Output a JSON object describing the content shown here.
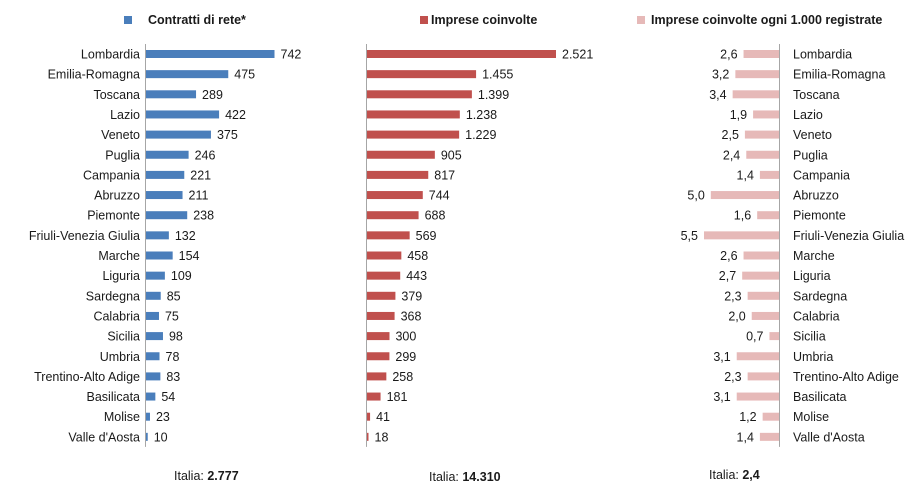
{
  "chart_data": [
    {
      "type": "bar",
      "orientation": "horizontal",
      "series_name": "Contratti di rete*",
      "color": "#4a7ebb",
      "categories": [
        "Lombardia",
        "Emilia-Romagna",
        "Toscana",
        "Lazio",
        "Veneto",
        "Puglia",
        "Campania",
        "Abruzzo",
        "Piemonte",
        "Friuli-Venezia Giulia",
        "Marche",
        "Liguria",
        "Sardegna",
        "Calabria",
        "Sicilia",
        "Umbria",
        "Trentino-Alto Adige",
        "Basilicata",
        "Molise",
        "Valle d'Aosta"
      ],
      "values": [
        742,
        475,
        289,
        422,
        375,
        246,
        221,
        211,
        238,
        132,
        154,
        109,
        85,
        75,
        98,
        78,
        83,
        54,
        23,
        10
      ],
      "value_labels": [
        "742",
        "475",
        "289",
        "422",
        "375",
        "246",
        "221",
        "211",
        "238",
        "132",
        "154",
        "109",
        "85",
        "75",
        "98",
        "78",
        "83",
        "54",
        "23",
        "10"
      ],
      "total_label": "Italia: ",
      "total_value": "2.777"
    },
    {
      "type": "bar",
      "orientation": "horizontal",
      "series_name": "Imprese coinvolte",
      "color": "#c0504d",
      "categories": [
        "Lombardia",
        "Emilia-Romagna",
        "Toscana",
        "Lazio",
        "Veneto",
        "Puglia",
        "Campania",
        "Abruzzo",
        "Piemonte",
        "Friuli-Venezia Giulia",
        "Marche",
        "Liguria",
        "Sardegna",
        "Calabria",
        "Sicilia",
        "Umbria",
        "Trentino-Alto Adige",
        "Basilicata",
        "Molise",
        "Valle d'Aosta"
      ],
      "values": [
        2521,
        1455,
        1399,
        1238,
        1229,
        905,
        817,
        744,
        688,
        569,
        458,
        443,
        379,
        368,
        300,
        299,
        258,
        181,
        41,
        18
      ],
      "value_labels": [
        "2.521",
        "1.455",
        "1.399",
        "1.238",
        "1.229",
        "905",
        "817",
        "744",
        "688",
        "569",
        "458",
        "443",
        "379",
        "368",
        "300",
        "299",
        "258",
        "181",
        "41",
        "18"
      ],
      "total_label": "Italia: ",
      "total_value": "14.310"
    },
    {
      "type": "bar",
      "orientation": "horizontal",
      "direction": "right-to-left",
      "series_name": "Imprese coinvolte ogni 1.000 registrate",
      "color": "#e6b9b8",
      "categories": [
        "Lombardia",
        "Emilia-Romagna",
        "Toscana",
        "Lazio",
        "Veneto",
        "Puglia",
        "Campania",
        "Abruzzo",
        "Piemonte",
        "Friuli-Venezia Giulia",
        "Marche",
        "Liguria",
        "Sardegna",
        "Calabria",
        "Sicilia",
        "Umbria",
        "Trentino-Alto Adige",
        "Basilicata",
        "Molise",
        "Valle d'Aosta"
      ],
      "values": [
        2.6,
        3.2,
        3.4,
        1.9,
        2.5,
        2.4,
        1.4,
        5.0,
        1.6,
        5.5,
        2.6,
        2.7,
        2.3,
        2.0,
        0.7,
        3.1,
        2.3,
        3.1,
        1.2,
        1.4
      ],
      "value_labels": [
        "2,6",
        "3,2",
        "3,4",
        "1,9",
        "2,5",
        "2,4",
        "1,4",
        "5,0",
        "1,6",
        "5,5",
        "2,6",
        "2,7",
        "2,3",
        "2,0",
        "0,7",
        "3,1",
        "2,3",
        "3,1",
        "1,2",
        "1,4"
      ],
      "total_label": "Italia: ",
      "total_value": "2,4"
    }
  ]
}
